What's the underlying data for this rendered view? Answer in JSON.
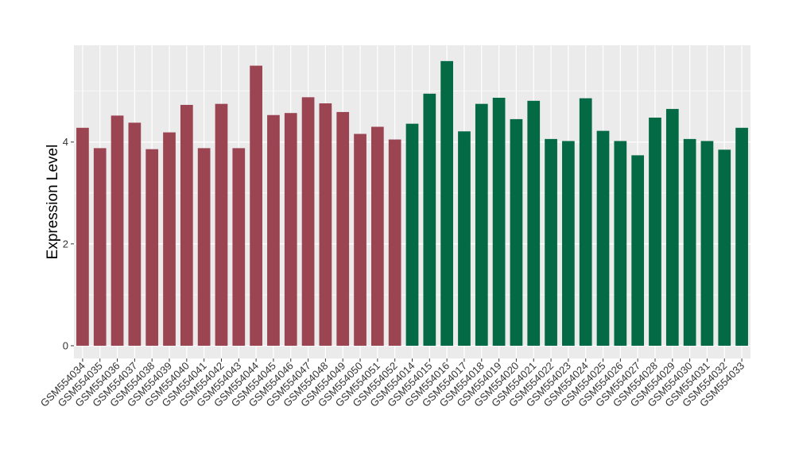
{
  "chart_data": {
    "type": "bar",
    "title": "",
    "xlabel": "",
    "ylabel": "Expression Level",
    "ylim": [
      -0.25,
      5.9
    ],
    "yticks": [
      0,
      2,
      4
    ],
    "grid": true,
    "legend": "none",
    "colors": {
      "group1": "#9B4452",
      "group2": "#036A45",
      "panel": "#EBEBEB",
      "grid": "#FFFFFF"
    },
    "categories": [
      "GSM554034",
      "GSM554035",
      "GSM554036",
      "GSM554037",
      "GSM554038",
      "GSM554039",
      "GSM554040",
      "GSM554041",
      "GSM554042",
      "GSM554043",
      "GSM554044",
      "GSM554045",
      "GSM554046",
      "GSM554047",
      "GSM554048",
      "GSM554049",
      "GSM554050",
      "GSM554051",
      "GSM554052",
      "GSM554014",
      "GSM554015",
      "GSM554016",
      "GSM554017",
      "GSM554018",
      "GSM554019",
      "GSM554020",
      "GSM554021",
      "GSM554022",
      "GSM554023",
      "GSM554024",
      "GSM554025",
      "GSM554026",
      "GSM554027",
      "GSM554028",
      "GSM554029",
      "GSM554030",
      "GSM554031",
      "GSM554032",
      "GSM554033"
    ],
    "values": [
      4.28,
      3.88,
      4.52,
      4.38,
      3.86,
      4.19,
      4.73,
      3.88,
      4.75,
      3.88,
      5.5,
      4.53,
      4.57,
      4.88,
      4.76,
      4.59,
      4.16,
      4.3,
      4.05,
      4.36,
      4.95,
      5.59,
      4.21,
      4.75,
      4.87,
      4.45,
      4.81,
      4.06,
      4.02,
      4.86,
      4.22,
      4.02,
      3.74,
      4.48,
      4.65,
      4.06,
      4.02,
      3.85,
      4.28
    ],
    "groups": [
      1,
      1,
      1,
      1,
      1,
      1,
      1,
      1,
      1,
      1,
      1,
      1,
      1,
      1,
      1,
      1,
      1,
      1,
      1,
      2,
      2,
      2,
      2,
      2,
      2,
      2,
      2,
      2,
      2,
      2,
      2,
      2,
      2,
      2,
      2,
      2,
      2,
      2,
      2
    ]
  }
}
